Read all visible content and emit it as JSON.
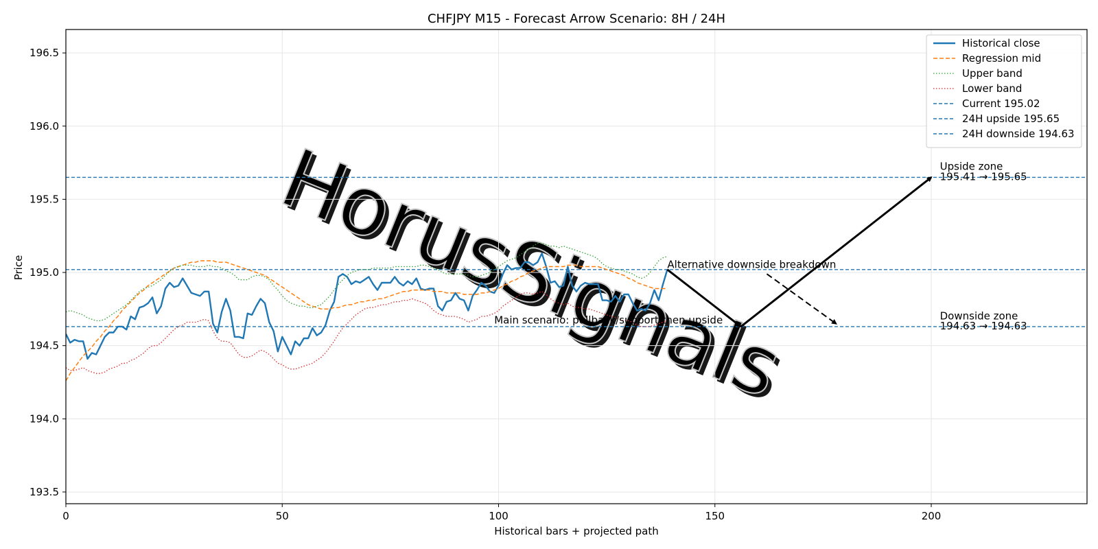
{
  "chart_data": {
    "type": "line",
    "title": "CHFJPY M15 - Forecast Arrow Scenario: 8H / 24H",
    "xlabel": "Historical bars + projected path",
    "ylabel": "Price",
    "xlim": [
      0,
      236
    ],
    "ylim": [
      193.42,
      196.66
    ],
    "xticks": [
      0,
      50,
      100,
      150,
      200
    ],
    "yticks": [
      193.5,
      194.0,
      194.5,
      195.0,
      195.5,
      196.0,
      196.5
    ],
    "grid": true,
    "legend_position": "top-right",
    "colors": {
      "close": "#1f77b4",
      "mid": "#ff7f0e",
      "upper": "#2ca02c",
      "lower": "#d62728",
      "level": "#1f77b4",
      "arrow": "#000000"
    },
    "series": [
      {
        "name": "Historical close",
        "style": "solid",
        "x_start": 0,
        "values": [
          194.58,
          194.52,
          194.54,
          194.53,
          194.53,
          194.41,
          194.45,
          194.44,
          194.5,
          194.56,
          194.59,
          194.59,
          194.63,
          194.63,
          194.61,
          194.7,
          194.68,
          194.76,
          194.77,
          194.79,
          194.83,
          194.72,
          194.77,
          194.89,
          194.93,
          194.9,
          194.91,
          194.96,
          194.91,
          194.86,
          194.85,
          194.84,
          194.87,
          194.87,
          194.65,
          194.59,
          194.73,
          194.82,
          194.74,
          194.56,
          194.56,
          194.55,
          194.72,
          194.71,
          194.77,
          194.82,
          194.79,
          194.66,
          194.6,
          194.46,
          194.56,
          194.5,
          194.44,
          194.53,
          194.5,
          194.55,
          194.55,
          194.62,
          194.57,
          194.59,
          194.64,
          194.74,
          194.8,
          194.97,
          194.99,
          194.97,
          194.92,
          194.94,
          194.93,
          194.95,
          194.97,
          194.92,
          194.88,
          194.93,
          194.93,
          194.93,
          194.97,
          194.93,
          194.91,
          194.94,
          194.92,
          194.96,
          194.89,
          194.88,
          194.89,
          194.89,
          194.77,
          194.74,
          194.8,
          194.81,
          194.86,
          194.82,
          194.81,
          194.74,
          194.84,
          194.88,
          194.93,
          194.91,
          194.87,
          194.86,
          194.91,
          194.99,
          195.05,
          195.02,
          195.03,
          195.03,
          195.07,
          195.07,
          195.05,
          195.07,
          195.13,
          195.04,
          194.93,
          194.94,
          194.9,
          194.91,
          195.04,
          194.91,
          194.87,
          194.91,
          194.93,
          194.92,
          194.92,
          194.92,
          194.81,
          194.81,
          194.8,
          194.84,
          194.8,
          194.85,
          194.85,
          194.79,
          194.74,
          194.75,
          194.74,
          194.79,
          194.88,
          194.81,
          194.92,
          195.02
        ]
      },
      {
        "name": "Regression mid",
        "style": "dashed",
        "x_start": 0,
        "values": [
          194.26,
          194.31,
          194.35,
          194.39,
          194.43,
          194.46,
          194.49,
          194.53,
          194.56,
          194.6,
          194.63,
          194.67,
          194.7,
          194.74,
          194.77,
          194.8,
          194.83,
          194.86,
          194.88,
          194.91,
          194.93,
          194.95,
          194.97,
          194.99,
          195.01,
          195.03,
          195.04,
          195.05,
          195.06,
          195.07,
          195.07,
          195.08,
          195.08,
          195.08,
          195.08,
          195.07,
          195.07,
          195.07,
          195.06,
          195.05,
          195.04,
          195.03,
          195.02,
          195.01,
          195.0,
          194.99,
          194.98,
          194.96,
          194.94,
          194.92,
          194.9,
          194.88,
          194.86,
          194.84,
          194.82,
          194.8,
          194.78,
          194.77,
          194.76,
          194.75,
          194.75,
          194.75,
          194.76,
          194.76,
          194.77,
          194.78,
          194.78,
          194.79,
          194.8,
          194.8,
          194.81,
          194.81,
          194.82,
          194.82,
          194.83,
          194.84,
          194.85,
          194.86,
          194.87,
          194.87,
          194.88,
          194.88,
          194.88,
          194.88,
          194.88,
          194.87,
          194.87,
          194.87,
          194.86,
          194.86,
          194.86,
          194.86,
          194.85,
          194.85,
          194.85,
          194.85,
          194.86,
          194.86,
          194.87,
          194.88,
          194.89,
          194.91,
          194.92,
          194.94,
          194.95,
          194.97,
          194.98,
          195.0,
          195.01,
          195.02,
          195.03,
          195.04,
          195.04,
          195.04,
          195.04,
          195.04,
          195.05,
          195.05,
          195.05,
          195.04,
          195.04,
          195.04,
          195.04,
          195.04,
          195.03,
          195.02,
          195.01,
          195.0,
          194.99,
          194.98,
          194.96,
          194.95,
          194.93,
          194.92,
          194.91,
          194.9,
          194.89,
          194.89,
          194.89,
          194.89
        ]
      },
      {
        "name": "Upper band",
        "style": "dotted",
        "x_start": 0,
        "values": [
          194.73,
          194.74,
          194.73,
          194.72,
          194.71,
          194.69,
          194.68,
          194.67,
          194.67,
          194.68,
          194.7,
          194.72,
          194.74,
          194.76,
          194.78,
          194.81,
          194.84,
          194.87,
          194.89,
          194.9,
          194.91,
          194.93,
          194.95,
          194.98,
          195.01,
          195.03,
          195.04,
          195.05,
          195.05,
          195.05,
          195.04,
          195.04,
          195.04,
          195.05,
          195.04,
          195.04,
          195.03,
          195.01,
          195.0,
          194.98,
          194.95,
          194.95,
          194.95,
          194.97,
          194.98,
          194.98,
          194.97,
          194.95,
          194.91,
          194.88,
          194.84,
          194.81,
          194.79,
          194.78,
          194.77,
          194.77,
          194.76,
          194.76,
          194.77,
          194.78,
          194.81,
          194.84,
          194.88,
          194.92,
          194.95,
          194.98,
          195.0,
          195.01,
          195.02,
          195.02,
          195.02,
          195.03,
          195.03,
          195.03,
          195.03,
          195.03,
          195.04,
          195.04,
          195.04,
          195.04,
          195.04,
          195.04,
          195.05,
          195.05,
          195.04,
          195.03,
          195.02,
          195.0,
          194.99,
          194.99,
          194.99,
          194.99,
          194.99,
          194.98,
          194.97,
          194.97,
          194.98,
          194.99,
          195.0,
          195.02,
          195.04,
          195.06,
          195.08,
          195.09,
          195.1,
          195.12,
          195.14,
          195.16,
          195.18,
          195.2,
          195.2,
          195.19,
          195.18,
          195.18,
          195.17,
          195.18,
          195.17,
          195.16,
          195.15,
          195.14,
          195.13,
          195.12,
          195.11,
          195.09,
          195.06,
          195.04,
          195.03,
          195.02,
          195.02,
          195.01,
          195.0,
          194.99,
          194.97,
          194.96,
          194.97,
          195.0,
          195.04,
          195.08,
          195.1,
          195.11
        ]
      },
      {
        "name": "Lower band",
        "style": "dotted",
        "x_start": 0,
        "values": [
          194.35,
          194.33,
          194.33,
          194.34,
          194.35,
          194.33,
          194.32,
          194.31,
          194.31,
          194.32,
          194.34,
          194.35,
          194.36,
          194.38,
          194.38,
          194.4,
          194.41,
          194.43,
          194.45,
          194.48,
          194.5,
          194.5,
          194.52,
          194.55,
          194.58,
          194.61,
          194.63,
          194.64,
          194.66,
          194.66,
          194.66,
          194.67,
          194.68,
          194.67,
          194.6,
          194.55,
          194.53,
          194.53,
          194.52,
          194.48,
          194.44,
          194.42,
          194.42,
          194.43,
          194.45,
          194.47,
          194.46,
          194.44,
          194.41,
          194.38,
          194.37,
          194.35,
          194.34,
          194.34,
          194.35,
          194.36,
          194.37,
          194.38,
          194.4,
          194.42,
          194.45,
          194.49,
          194.53,
          194.58,
          194.62,
          194.65,
          194.68,
          194.71,
          194.73,
          194.75,
          194.76,
          194.76,
          194.77,
          194.78,
          194.78,
          194.79,
          194.8,
          194.8,
          194.81,
          194.81,
          194.82,
          194.81,
          194.8,
          194.79,
          194.77,
          194.74,
          194.72,
          194.71,
          194.7,
          194.7,
          194.7,
          194.69,
          194.68,
          194.66,
          194.67,
          194.68,
          194.7,
          194.7,
          194.71,
          194.72,
          194.74,
          194.77,
          194.79,
          194.81,
          194.83,
          194.85,
          194.86,
          194.86,
          194.85,
          194.86,
          194.87,
          194.85,
          194.82,
          194.8,
          194.79,
          194.78,
          194.79,
          194.77,
          194.76,
          194.76,
          194.75,
          194.75,
          194.74,
          194.73,
          194.72,
          194.71,
          194.7,
          194.69,
          194.68,
          194.67,
          194.67,
          194.66,
          194.64,
          194.63,
          194.63,
          194.63,
          194.64,
          194.65,
          194.66,
          194.67
        ]
      }
    ],
    "levels": [
      {
        "name": "Current 195.02",
        "value": 195.02
      },
      {
        "name": "24H upside 195.65",
        "value": 195.65
      },
      {
        "name": "24H downside 194.63",
        "value": 194.63
      }
    ],
    "arrows": [
      {
        "kind": "main",
        "from": [
          139,
          195.02
        ],
        "to": [
          156,
          194.63
        ]
      },
      {
        "kind": "main",
        "from": [
          156,
          194.63
        ],
        "to": [
          200,
          195.65
        ]
      },
      {
        "kind": "alternative",
        "from": [
          162,
          194.99
        ],
        "to": [
          178,
          194.65
        ]
      }
    ],
    "annotations": [
      {
        "text": "Upside zone",
        "x": 202,
        "y": 195.7
      },
      {
        "text": "195.41 → 195.65",
        "x": 202,
        "y": 195.63
      },
      {
        "text": "Downside zone",
        "x": 202,
        "y": 194.68
      },
      {
        "text": "194.63 → 194.63",
        "x": 202,
        "y": 194.61
      },
      {
        "text": "Alternative downside breakdown",
        "x": 139,
        "y": 195.03
      },
      {
        "text": "Main scenario: pullback/support then upside",
        "x": 99,
        "y": 194.65
      }
    ],
    "watermark": "HorusSignals"
  }
}
